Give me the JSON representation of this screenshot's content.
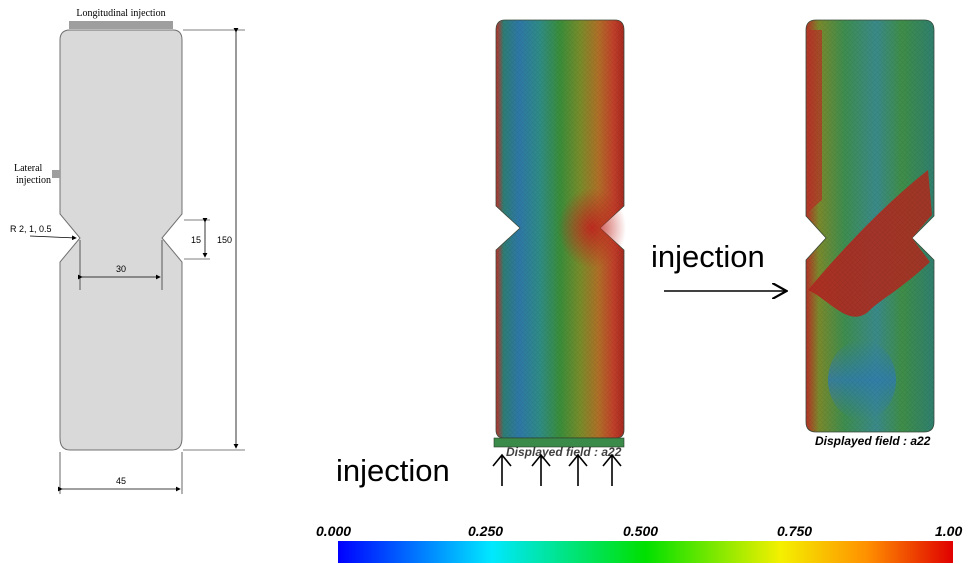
{
  "schematic": {
    "longitudinal_label": "Longitudinal injection",
    "lateral_label_line1": "Lateral",
    "lateral_label_line2": "injection",
    "radius_label": "R 2, 1, 0.5",
    "dim_height": "150",
    "dim_notch": "15",
    "dim_neck_width": "30",
    "dim_width": "45"
  },
  "sample_left": {
    "injection_label": "injection",
    "arrow_count": 4,
    "field_label": "Displayed field : a22"
  },
  "sample_right": {
    "injection_label": "injection",
    "field_label": "Displayed field : a22"
  },
  "colorbar": {
    "ticks": [
      "0.000",
      "0.250",
      "0.500",
      "0.750",
      "1.00"
    ],
    "colors": [
      "#0000ff",
      "#00e5ff",
      "#00e600",
      "#f0f000",
      "#ff8000",
      "#e00000"
    ]
  }
}
